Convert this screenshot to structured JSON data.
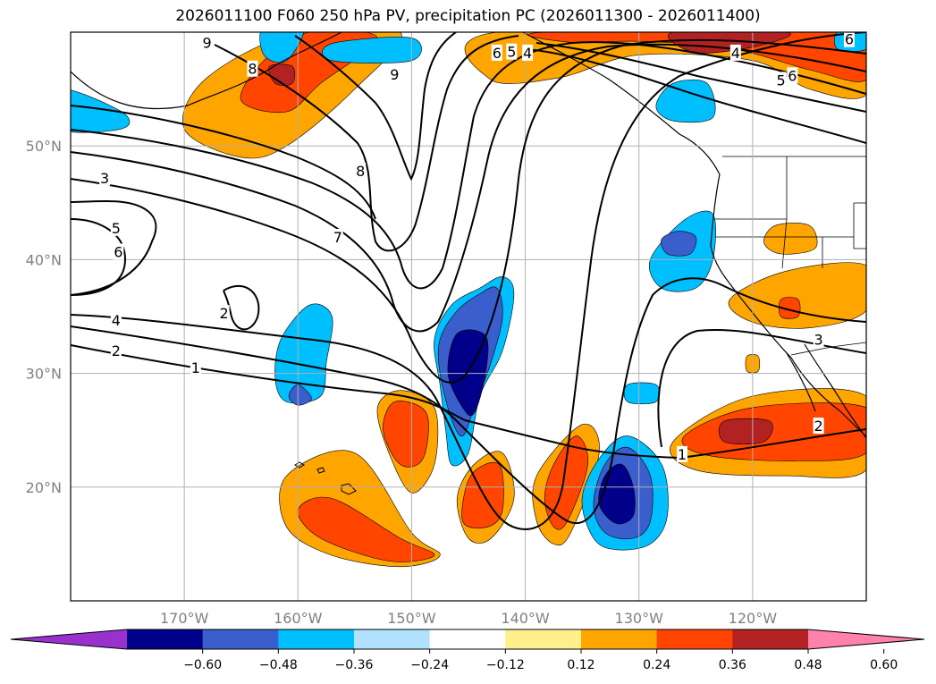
{
  "title": "2026011100 F060 250 hPa PV, precipitation PC (2026011300 - 2026011400)",
  "map": {
    "lon_range": [
      -180,
      -110
    ],
    "lat_range": [
      10,
      60
    ],
    "lon_ticks": [
      {
        "value": -170,
        "label": "170°W"
      },
      {
        "value": -160,
        "label": "160°W"
      },
      {
        "value": -150,
        "label": "150°W"
      },
      {
        "value": -140,
        "label": "140°W"
      },
      {
        "value": -130,
        "label": "130°W"
      },
      {
        "value": -120,
        "label": "120°W"
      }
    ],
    "lat_ticks": [
      {
        "value": 20,
        "label": "20°N"
      },
      {
        "value": 30,
        "label": "30°N"
      },
      {
        "value": 40,
        "label": "40°N"
      },
      {
        "value": 50,
        "label": "50°N"
      }
    ],
    "grid": true,
    "pv_contour_labels": [
      {
        "text": "1",
        "lon": -169,
        "lat": 30.5
      },
      {
        "text": "2",
        "lon": -176,
        "lat": 32.0
      },
      {
        "text": "4",
        "lon": -176,
        "lat": 34.7
      },
      {
        "text": "6",
        "lon": -175.8,
        "lat": 40.7
      },
      {
        "text": "5",
        "lon": -176,
        "lat": 42.8
      },
      {
        "text": "3",
        "lon": -177,
        "lat": 47.2
      },
      {
        "text": "2",
        "lon": -166.5,
        "lat": 35.3
      },
      {
        "text": "7",
        "lon": -156.5,
        "lat": 42.0
      },
      {
        "text": "8",
        "lon": -154.5,
        "lat": 47.8
      },
      {
        "text": "9",
        "lon": -151.5,
        "lat": 56.3
      },
      {
        "text": "9",
        "lon": -168,
        "lat": 59.1
      },
      {
        "text": "8",
        "lon": -164,
        "lat": 56.8
      },
      {
        "text": "6",
        "lon": -142.5,
        "lat": 58.2
      },
      {
        "text": "5",
        "lon": -141.2,
        "lat": 58.3
      },
      {
        "text": "4",
        "lon": -139.8,
        "lat": 58.2
      },
      {
        "text": "4",
        "lon": -121.5,
        "lat": 58.2
      },
      {
        "text": "5",
        "lon": -117.5,
        "lat": 55.8
      },
      {
        "text": "6",
        "lon": -116.5,
        "lat": 56.2
      },
      {
        "text": "6",
        "lon": -111.5,
        "lat": 59.4
      },
      {
        "text": "3",
        "lon": -114.2,
        "lat": 33.0
      },
      {
        "text": "2",
        "lon": -114.2,
        "lat": 25.4
      },
      {
        "text": "1",
        "lon": -126.2,
        "lat": 22.9
      }
    ],
    "precip_positive": [
      {
        "level": 0.24,
        "color": "#ffa500",
        "points": [
          [
            -160,
            60
          ],
          [
            -151,
            60
          ],
          [
            -155,
            55
          ],
          [
            -161,
            50
          ],
          [
            -165,
            49
          ],
          [
            -170,
            51.5
          ],
          [
            -168,
            56
          ]
        ]
      },
      {
        "level": 0.36,
        "color": "#ff4500",
        "points": [
          [
            -159,
            60
          ],
          [
            -153,
            59.5
          ],
          [
            -158,
            55.5
          ],
          [
            -161,
            53
          ],
          [
            -165,
            54
          ],
          [
            -163,
            57.5
          ]
        ]
      },
      {
        "level": 0.48,
        "color": "#b22222",
        "points": [
          [
            -162.5,
            57
          ],
          [
            -160.5,
            57
          ],
          [
            -160.5,
            55.5
          ],
          [
            -162,
            55.5
          ]
        ]
      },
      {
        "level": 0.24,
        "color": "#ffa500",
        "points": [
          [
            -142.5,
            60
          ],
          [
            -110,
            60
          ],
          [
            -110,
            54.5
          ],
          [
            -115,
            55
          ],
          [
            -120,
            57.5
          ],
          [
            -130,
            58
          ],
          [
            -137,
            56
          ],
          [
            -143,
            55.8
          ]
        ]
      },
      {
        "level": 0.36,
        "color": "#ff4500",
        "points": [
          [
            -138,
            60
          ],
          [
            -110,
            60
          ],
          [
            -110,
            55.8
          ],
          [
            -115,
            56.7
          ],
          [
            -122,
            58.6
          ],
          [
            -130,
            59.2
          ],
          [
            -136,
            59.1
          ]
        ]
      },
      {
        "level": 0.48,
        "color": "#b22222",
        "points": [
          [
            -127,
            60
          ],
          [
            -117,
            60
          ],
          [
            -119.5,
            58.8
          ],
          [
            -125,
            58.2
          ]
        ]
      },
      {
        "level": 0.24,
        "color": "#ffa500",
        "points": [
          [
            -155,
            23
          ],
          [
            -150,
            16
          ],
          [
            -147.5,
            14
          ],
          [
            -151,
            13
          ],
          [
            -157,
            14
          ],
          [
            -161,
            16.5
          ],
          [
            -161,
            21
          ]
        ]
      },
      {
        "level": 0.36,
        "color": "#ff4500",
        "points": [
          [
            -157,
            19
          ],
          [
            -151,
            15.5
          ],
          [
            -148,
            14
          ],
          [
            -152,
            13.5
          ],
          [
            -158,
            15.5
          ],
          [
            -160,
            18
          ]
        ]
      },
      {
        "level": 0.24,
        "color": "#ffa500",
        "points": [
          [
            -151,
            28.5
          ],
          [
            -148,
            27
          ],
          [
            -148,
            22
          ],
          [
            -150,
            19.5
          ],
          [
            -152,
            23
          ],
          [
            -153,
            27
          ]
        ]
      },
      {
        "level": 0.36,
        "color": "#ff4500",
        "points": [
          [
            -151.5,
            27.5
          ],
          [
            -148.7,
            26.5
          ],
          [
            -149,
            22.5
          ],
          [
            -151,
            22
          ],
          [
            -152.5,
            25
          ]
        ]
      },
      {
        "level": 0.24,
        "color": "#ffa500",
        "points": [
          [
            -142,
            23
          ],
          [
            -141,
            19
          ],
          [
            -143,
            15.5
          ],
          [
            -145,
            15.5
          ],
          [
            -146,
            19
          ],
          [
            -144.5,
            22
          ]
        ]
      },
      {
        "level": 0.36,
        "color": "#ff4500",
        "points": [
          [
            -142.3,
            22
          ],
          [
            -142,
            18
          ],
          [
            -143.3,
            16.5
          ],
          [
            -145.5,
            17
          ],
          [
            -144.8,
            21
          ]
        ]
      },
      {
        "level": 0.24,
        "color": "#ffa500",
        "points": [
          [
            -135,
            25.5
          ],
          [
            -133.5,
            23
          ],
          [
            -136,
            16
          ],
          [
            -137.5,
            15
          ],
          [
            -139,
            17
          ],
          [
            -139,
            21
          ]
        ]
      },
      {
        "level": 0.36,
        "color": "#ff4500",
        "points": [
          [
            -135.5,
            24.5
          ],
          [
            -134.5,
            22
          ],
          [
            -136.3,
            17
          ],
          [
            -137.5,
            16.5
          ],
          [
            -138.3,
            19
          ],
          [
            -137.5,
            22
          ]
        ]
      },
      {
        "level": 0.24,
        "color": "#ffa500",
        "points": [
          [
            -120,
            28
          ],
          [
            -110,
            28
          ],
          [
            -110,
            21.5
          ],
          [
            -117,
            21
          ],
          [
            -125,
            21.5
          ],
          [
            -127,
            24
          ]
        ]
      },
      {
        "level": 0.36,
        "color": "#ff4500",
        "points": [
          [
            -120,
            27
          ],
          [
            -110,
            27
          ],
          [
            -110,
            23
          ],
          [
            -116,
            22.3
          ],
          [
            -124,
            22.8
          ],
          [
            -126,
            24.5
          ]
        ]
      },
      {
        "level": 0.48,
        "color": "#b22222",
        "points": [
          [
            -122.5,
            25.8
          ],
          [
            -118.5,
            25.8
          ],
          [
            -119,
            24
          ],
          [
            -122.5,
            24
          ]
        ]
      },
      {
        "level": 0.24,
        "color": "#ffa500",
        "points": [
          [
            -117,
            39
          ],
          [
            -110,
            39.5
          ],
          [
            -110,
            35.5
          ],
          [
            -115,
            34
          ],
          [
            -120,
            34.5
          ],
          [
            -122,
            36.5
          ]
        ]
      },
      {
        "level": 0.36,
        "color": "#ff4500",
        "points": [
          [
            -117.5,
            36.5
          ],
          [
            -116,
            36.5
          ],
          [
            -116,
            35
          ],
          [
            -117.5,
            35
          ]
        ]
      },
      {
        "level": 0.24,
        "color": "#ffa500",
        "points": [
          [
            -118,
            43
          ],
          [
            -115,
            43
          ],
          [
            -114.5,
            41
          ],
          [
            -117.5,
            40.5
          ],
          [
            -119,
            41.5
          ]
        ]
      },
      {
        "level": 0.24,
        "color": "#ffa500",
        "points": [
          [
            -120.5,
            31.5
          ],
          [
            -119.5,
            31.5
          ],
          [
            -119.5,
            30.2
          ],
          [
            -120.5,
            30.2
          ]
        ]
      }
    ],
    "precip_negative": [
      {
        "level": -0.36,
        "color": "#00bfff",
        "points": [
          [
            -144,
            37.5
          ],
          [
            -142,
            38.5
          ],
          [
            -141,
            37
          ],
          [
            -142,
            32
          ],
          [
            -144,
            28
          ],
          [
            -145,
            23
          ],
          [
            -146.5,
            22
          ],
          [
            -147,
            25
          ],
          [
            -147.5,
            29
          ],
          [
            -148,
            33
          ],
          [
            -146.5,
            36
          ]
        ]
      },
      {
        "level": -0.48,
        "color": "#3a5fcd",
        "points": [
          [
            -144,
            37
          ],
          [
            -142.5,
            37.5
          ],
          [
            -142,
            35
          ],
          [
            -143,
            31
          ],
          [
            -144.5,
            27
          ],
          [
            -145.5,
            24.5
          ],
          [
            -146.5,
            26
          ],
          [
            -147.5,
            30
          ],
          [
            -147.5,
            33
          ],
          [
            -146,
            35.5
          ]
        ]
      },
      {
        "level": -0.6,
        "color": "#00008b",
        "points": [
          [
            -146,
            33.5
          ],
          [
            -143.5,
            33.3
          ],
          [
            -143.5,
            30
          ],
          [
            -144.5,
            26.5
          ],
          [
            -145.5,
            27
          ],
          [
            -146.8,
            30
          ]
        ]
      },
      {
        "level": -0.36,
        "color": "#00bfff",
        "points": [
          [
            -159,
            36
          ],
          [
            -157,
            35
          ],
          [
            -157.5,
            31
          ],
          [
            -158,
            28
          ],
          [
            -161,
            27.5
          ],
          [
            -162,
            29.5
          ],
          [
            -161.5,
            33
          ]
        ]
      },
      {
        "level": -0.48,
        "color": "#3a5fcd",
        "points": [
          [
            -160,
            29
          ],
          [
            -158.8,
            27.8
          ],
          [
            -160,
            27.2
          ],
          [
            -160.8,
            28
          ]
        ]
      },
      {
        "level": -0.36,
        "color": "#00bfff",
        "points": [
          [
            -131,
            24.5
          ],
          [
            -128,
            22
          ],
          [
            -127.5,
            17.5
          ],
          [
            -129,
            15
          ],
          [
            -132,
            14.5
          ],
          [
            -134,
            15.5
          ],
          [
            -135,
            19
          ],
          [
            -133.5,
            22.5
          ]
        ]
      },
      {
        "level": -0.48,
        "color": "#3a5fcd",
        "points": [
          [
            -131,
            23.5
          ],
          [
            -129,
            21
          ],
          [
            -129,
            17
          ],
          [
            -130.5,
            15.5
          ],
          [
            -133,
            16
          ],
          [
            -134,
            18.5
          ],
          [
            -133,
            22
          ]
        ]
      },
      {
        "level": -0.6,
        "color": "#00008b",
        "points": [
          [
            -131.5,
            22
          ],
          [
            -130.5,
            20
          ],
          [
            -130.5,
            17.5
          ],
          [
            -132,
            16.8
          ],
          [
            -133.5,
            18.5
          ],
          [
            -133,
            21
          ]
        ]
      },
      {
        "level": -0.36,
        "color": "#00bfff",
        "points": [
          [
            -126,
            43.5
          ],
          [
            -123.5,
            44
          ],
          [
            -123.5,
            40
          ],
          [
            -125,
            37.5
          ],
          [
            -128,
            37.5
          ],
          [
            -129,
            40
          ]
        ]
      },
      {
        "level": -0.48,
        "color": "#3a5fcd",
        "points": [
          [
            -126.5,
            42.5
          ],
          [
            -125,
            42
          ],
          [
            -125.5,
            40.5
          ],
          [
            -127.5,
            40.5
          ],
          [
            -128,
            41.8
          ]
        ]
      },
      {
        "level": -0.36,
        "color": "#00bfff",
        "points": [
          [
            -127,
            55.5
          ],
          [
            -124,
            55.5
          ],
          [
            -123.5,
            52.5
          ],
          [
            -127,
            52.2
          ],
          [
            -128.5,
            53.5
          ]
        ]
      },
      {
        "level": -0.36,
        "color": "#00bfff",
        "points": [
          [
            -181,
            55
          ],
          [
            -175.5,
            53
          ],
          [
            -175.5,
            51.5
          ],
          [
            -181,
            51.5
          ]
        ]
      },
      {
        "level": -0.36,
        "color": "#00bfff",
        "points": [
          [
            -157,
            59
          ],
          [
            -150,
            59.5
          ],
          [
            -150,
            57.5
          ],
          [
            -157,
            57.5
          ]
        ]
      },
      {
        "level": -0.36,
        "color": "#00bfff",
        "points": [
          [
            -163,
            60.5
          ],
          [
            -159.5,
            60.5
          ],
          [
            -161,
            57.5
          ],
          [
            -163,
            58
          ]
        ]
      },
      {
        "level": -0.36,
        "color": "#00bfff",
        "points": [
          [
            -131,
            29
          ],
          [
            -128.5,
            29
          ],
          [
            -128.5,
            27.5
          ],
          [
            -131,
            27.5
          ]
        ]
      },
      {
        "level": -0.36,
        "color": "#00bfff",
        "points": [
          [
            -112.5,
            60
          ],
          [
            -110,
            60
          ],
          [
            -110,
            58.5
          ],
          [
            -112.5,
            58.5
          ]
        ]
      }
    ]
  },
  "colorbar": {
    "colors": [
      "#9932cc",
      "#00008b",
      "#3a5fcd",
      "#00bfff",
      "#b0e2ff",
      "#ffffff",
      "#fff08c",
      "#ffa500",
      "#ff4500",
      "#b22222",
      "#ff82ab"
    ],
    "tick_labels": [
      "−0.60",
      "−0.48",
      "−0.36",
      "−0.24",
      "−0.12",
      "0.12",
      "0.24",
      "0.36",
      "0.48",
      "0.60"
    ]
  }
}
